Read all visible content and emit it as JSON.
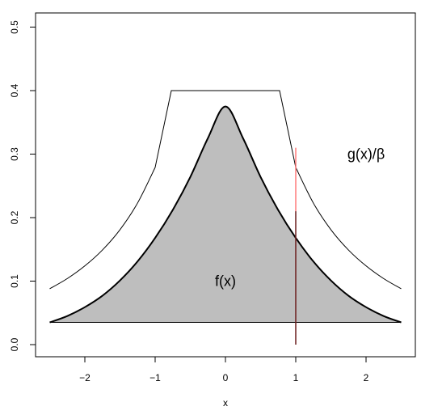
{
  "chart_data": {
    "type": "line",
    "title": "",
    "xlabel": "x",
    "ylabel": "",
    "xlim": [
      -2.6,
      2.6
    ],
    "ylim": [
      -0.02,
      0.52
    ],
    "x_ticks": [
      -2,
      -1,
      0,
      1,
      2
    ],
    "x_tick_labels": [
      "−2",
      "−1",
      "0",
      "1",
      "2"
    ],
    "y_ticks": [
      0.0,
      0.1,
      0.2,
      0.3,
      0.4,
      0.5
    ],
    "y_tick_labels": [
      "0.0",
      "0.1",
      "0.2",
      "0.3",
      "0.4",
      "0.5"
    ],
    "grid": false,
    "series": [
      {
        "name": "f(x)",
        "style": "thick black line, gray filled area above baseline",
        "fill_color": "#bebebe",
        "x": [
          -2.5,
          -2.25,
          -2.0,
          -1.75,
          -1.5,
          -1.25,
          -1.0,
          -0.75,
          -0.5,
          -0.25,
          0.0,
          0.25,
          0.5,
          0.75,
          1.0,
          1.25,
          1.5,
          1.75,
          2.0,
          2.25,
          2.5
        ],
        "values": [
          0.035,
          0.045,
          0.059,
          0.077,
          0.101,
          0.131,
          0.168,
          0.212,
          0.264,
          0.325,
          0.375,
          0.325,
          0.264,
          0.212,
          0.168,
          0.131,
          0.101,
          0.077,
          0.059,
          0.045,
          0.035
        ]
      },
      {
        "name": "g(x)/β",
        "style": "thin black line",
        "x": [
          -2.5,
          -2.25,
          -2.0,
          -1.75,
          -1.5,
          -1.25,
          -1.0,
          -0.77,
          0.77,
          1.0,
          1.25,
          1.5,
          1.75,
          2.0,
          2.25,
          2.5
        ],
        "values": [
          0.088,
          0.104,
          0.124,
          0.149,
          0.181,
          0.223,
          0.279,
          0.4,
          0.4,
          0.279,
          0.223,
          0.181,
          0.149,
          0.124,
          0.104,
          0.088
        ]
      }
    ],
    "baseline": {
      "y": 0.035,
      "x_from": -2.5,
      "x_to": 2.5
    },
    "vertical_marker": {
      "x": 1.0,
      "y_from": 0.0,
      "y_to": 0.31,
      "upper_color": "#ff7b7b",
      "lower_color": "#6b1e1e"
    },
    "annotations": [
      {
        "text": "f(x)",
        "x": 0.0,
        "y": 0.1
      },
      {
        "text": "g(x)/β",
        "x": 2.0,
        "y": 0.3
      }
    ]
  }
}
